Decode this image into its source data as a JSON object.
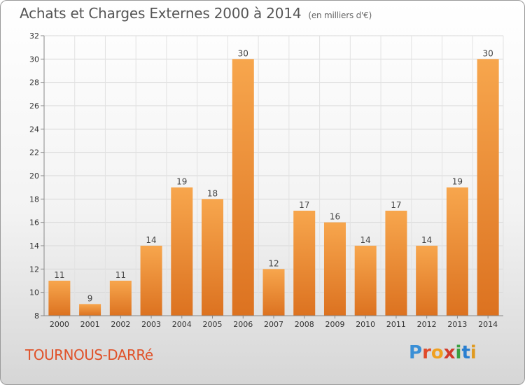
{
  "chart_data": {
    "type": "bar",
    "title": "Achats et Charges Externes 2000 à 2014",
    "subtitle": "(en milliers d'€)",
    "categories": [
      "2000",
      "2001",
      "2002",
      "2003",
      "2004",
      "2005",
      "2006",
      "2007",
      "2008",
      "2009",
      "2010",
      "2011",
      "2012",
      "2013",
      "2014"
    ],
    "values": [
      11,
      9,
      11,
      14,
      19,
      18,
      30,
      12,
      17,
      16,
      14,
      17,
      14,
      19,
      30
    ],
    "ylim": [
      8,
      32
    ],
    "yticks": [
      8,
      10,
      12,
      14,
      16,
      18,
      20,
      22,
      24,
      26,
      28,
      30,
      32
    ],
    "grid": true,
    "xlabel": "",
    "ylabel": "",
    "bar_color": "#f0922f"
  },
  "footer": {
    "commune": "TOURNOUS-DARRé",
    "logo_letters": [
      {
        "ch": "P",
        "color": "#3a8fd6"
      },
      {
        "ch": "r",
        "color": "#e04a2a"
      },
      {
        "ch": "o",
        "color": "#f0a020"
      },
      {
        "ch": "x",
        "color": "#d23a2a"
      },
      {
        "ch": "i",
        "color": "#3aa040"
      },
      {
        "ch": "t",
        "color": "#2a7fd0"
      },
      {
        "ch": "i",
        "color": "#e09a20"
      }
    ]
  }
}
